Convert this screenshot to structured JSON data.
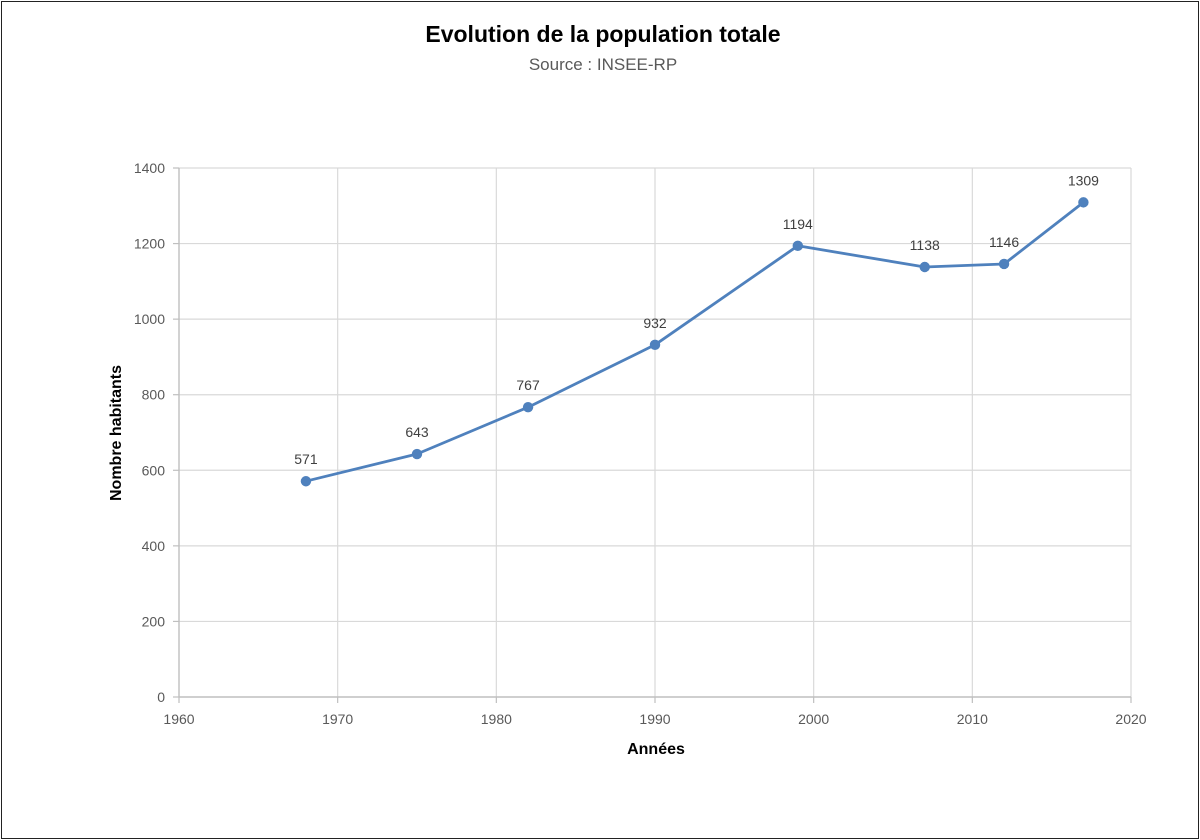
{
  "chart_data": {
    "type": "scatter",
    "title": "Evolution de la population totale",
    "subtitle": "Source : INSEE-RP",
    "xlabel": "Années",
    "ylabel": "Nombre habitants",
    "xlim": [
      1960,
      2020
    ],
    "ylim": [
      0,
      1400
    ],
    "xticks": [
      1960,
      1970,
      1980,
      1990,
      2000,
      2010,
      2020
    ],
    "yticks": [
      0,
      200,
      400,
      600,
      800,
      1000,
      1200,
      1400
    ],
    "grid": true,
    "legend": "none",
    "line_color": "#4F81BD",
    "series": [
      {
        "x": [
          1968,
          1975,
          1982,
          1990,
          1999,
          2007,
          2012,
          2017
        ],
        "y": [
          571,
          643,
          767,
          932,
          1194,
          1138,
          1146,
          1309
        ],
        "labels": [
          "571",
          "643",
          "767",
          "932",
          "1194",
          "1138",
          "1146",
          "1309"
        ]
      }
    ]
  }
}
